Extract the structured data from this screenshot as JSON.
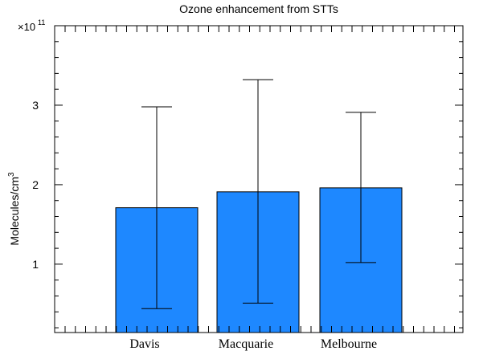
{
  "chart_data": {
    "type": "bar",
    "title": "Ozone enhancement from STTs",
    "ylabel_text": "Molecules/cm",
    "ylabel_sup": "3",
    "y_multiplier_base": "×10",
    "y_multiplier_exp": "11",
    "categories": [
      "Davis",
      "Macquarie",
      "Melbourne"
    ],
    "values": [
      1.71,
      1.91,
      1.96
    ],
    "error_low": [
      0.44,
      0.51,
      1.02
    ],
    "error_high": [
      2.98,
      3.32,
      2.91
    ],
    "ylim": [
      0.14,
      4.0
    ],
    "y_ticks": [
      1,
      2,
      3
    ],
    "y_tick_labels": [
      "1",
      "2",
      "3"
    ],
    "bar_color": "#1e88ff",
    "grid": false
  }
}
